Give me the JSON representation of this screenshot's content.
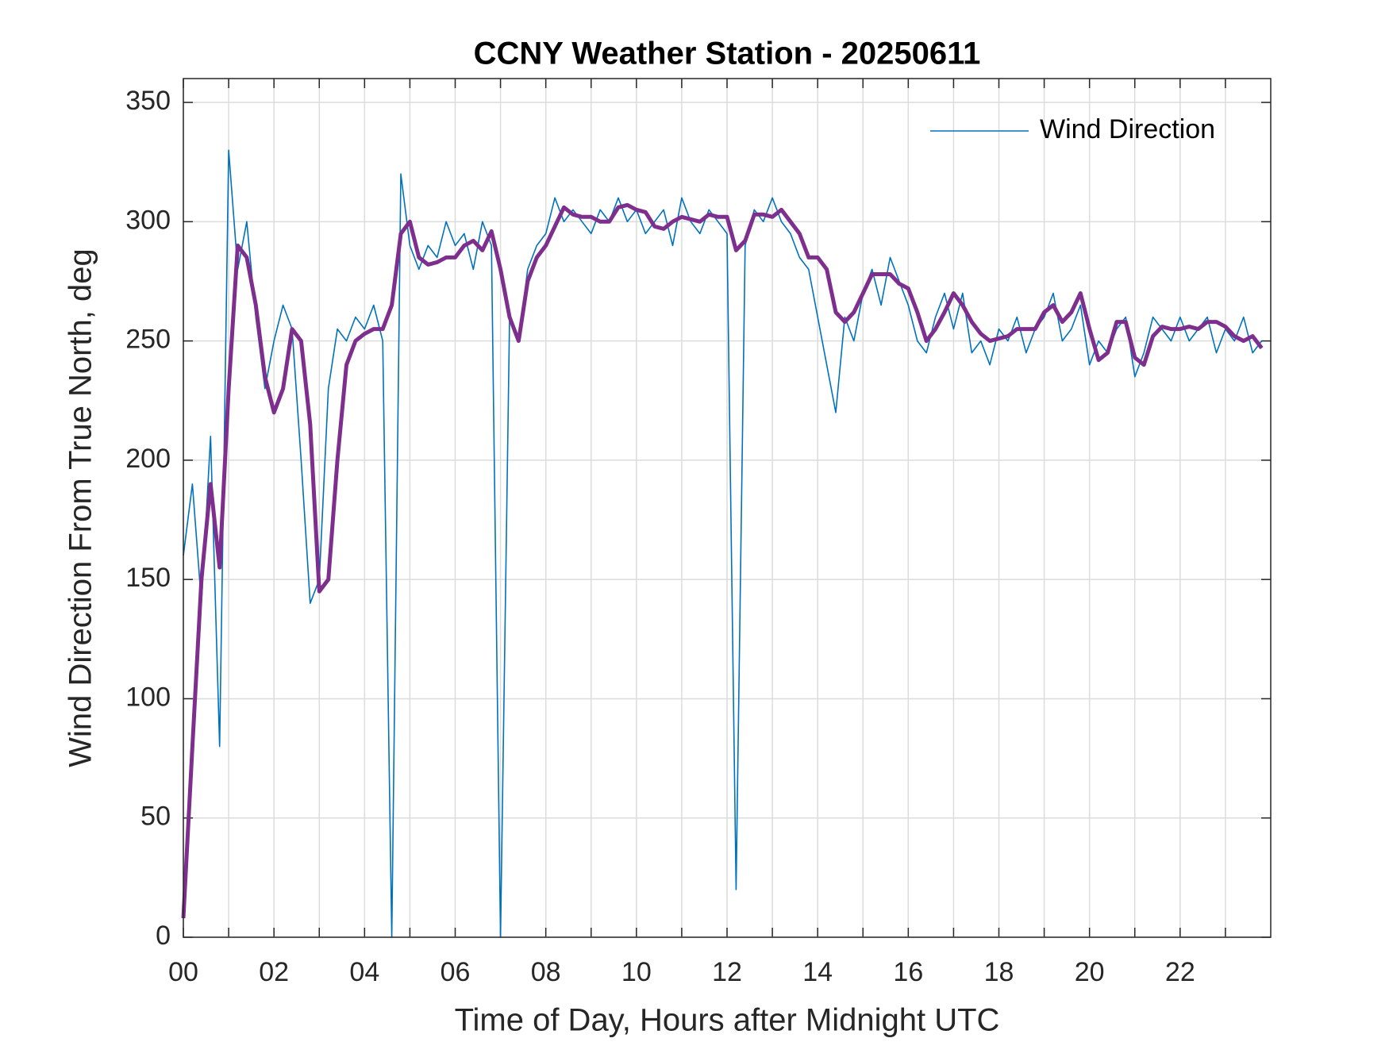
{
  "chart_data": {
    "type": "line",
    "title": "CCNY Weather Station - 20250611",
    "xlabel": "Time of Day, Hours after Midnight UTC",
    "ylabel": "Wind Direction From True North, deg",
    "x": [
      0,
      0.2,
      0.4,
      0.6,
      0.8,
      1,
      1.2,
      1.4,
      1.6,
      1.8,
      2,
      2.2,
      2.4,
      2.6,
      2.8,
      3,
      3.2,
      3.4,
      3.6,
      3.8,
      4,
      4.2,
      4.4,
      4.6,
      4.8,
      5,
      5.2,
      5.4,
      5.6,
      5.8,
      6,
      6.2,
      6.4,
      6.6,
      6.8,
      7,
      7.2,
      7.4,
      7.6,
      7.8,
      8,
      8.2,
      8.4,
      8.6,
      8.8,
      9,
      9.2,
      9.4,
      9.6,
      9.8,
      10,
      10.2,
      10.4,
      10.6,
      10.8,
      11,
      11.2,
      11.4,
      11.6,
      11.8,
      12,
      12.2,
      12.4,
      12.6,
      12.8,
      13,
      13.2,
      13.4,
      13.6,
      13.8,
      14,
      14.2,
      14.4,
      14.6,
      14.8,
      15,
      15.2,
      15.4,
      15.6,
      15.8,
      16,
      16.2,
      16.4,
      16.6,
      16.8,
      17,
      17.2,
      17.4,
      17.6,
      17.8,
      18,
      18.2,
      18.4,
      18.6,
      18.8,
      19,
      19.2,
      19.4,
      19.6,
      19.8,
      20,
      20.2,
      20.4,
      20.6,
      20.8,
      21,
      21.2,
      21.4,
      21.6,
      21.8,
      22,
      22.2,
      22.4,
      22.6,
      22.8,
      23,
      23.2,
      23.4,
      23.6,
      23.8
    ],
    "series": [
      {
        "name": "Wind Direction",
        "color": "#0072bd",
        "values": [
          160,
          190,
          140,
          210,
          80,
          330,
          280,
          300,
          260,
          230,
          250,
          265,
          255,
          200,
          140,
          150,
          230,
          255,
          250,
          260,
          255,
          265,
          250,
          0,
          320,
          290,
          280,
          290,
          285,
          300,
          290,
          295,
          280,
          300,
          290,
          0,
          260,
          250,
          280,
          290,
          295,
          310,
          300,
          305,
          300,
          295,
          305,
          300,
          310,
          300,
          305,
          295,
          300,
          305,
          290,
          310,
          300,
          295,
          305,
          300,
          295,
          20,
          290,
          305,
          300,
          310,
          300,
          295,
          285,
          280,
          260,
          240,
          220,
          260,
          250,
          270,
          280,
          265,
          285,
          275,
          265,
          250,
          245,
          260,
          270,
          255,
          270,
          245,
          250,
          240,
          255,
          250,
          260,
          245,
          255,
          260,
          270,
          250,
          255,
          265,
          240,
          250,
          245,
          255,
          260,
          235,
          245,
          260,
          255,
          250,
          260,
          250,
          255,
          260,
          245,
          255,
          250,
          260,
          245,
          250
        ]
      },
      {
        "color": "#7e2f8e",
        "values": [
          8,
          80,
          150,
          190,
          155,
          230,
          290,
          285,
          265,
          235,
          220,
          230,
          255,
          250,
          215,
          145,
          150,
          200,
          240,
          250,
          253,
          255,
          255,
          265,
          295,
          300,
          285,
          282,
          283,
          285,
          285,
          290,
          292,
          288,
          296,
          280,
          260,
          250,
          275,
          285,
          290,
          298,
          306,
          303,
          302,
          302,
          300,
          300,
          306,
          307,
          305,
          304,
          298,
          297,
          300,
          302,
          301,
          300,
          303,
          302,
          302,
          288,
          292,
          303,
          303,
          302,
          305,
          300,
          295,
          285,
          285,
          280,
          262,
          258,
          262,
          270,
          278,
          278,
          278,
          274,
          272,
          262,
          250,
          255,
          262,
          270,
          265,
          258,
          253,
          250,
          251,
          252,
          255,
          255,
          255,
          262,
          265,
          258,
          262,
          270,
          255,
          242,
          245,
          258,
          258,
          243,
          240,
          252,
          256,
          255,
          255,
          256,
          255,
          258,
          258,
          256,
          252,
          250,
          252,
          247
        ]
      }
    ],
    "xlim": [
      0,
      24
    ],
    "xticks": [
      {
        "value": 0,
        "label": "00"
      },
      {
        "value": 2,
        "label": "02"
      },
      {
        "value": 4,
        "label": "04"
      },
      {
        "value": 6,
        "label": "06"
      },
      {
        "value": 8,
        "label": "08"
      },
      {
        "value": 10,
        "label": "10"
      },
      {
        "value": 12,
        "label": "12"
      },
      {
        "value": 14,
        "label": "14"
      },
      {
        "value": 16,
        "label": "16"
      },
      {
        "value": 18,
        "label": "18"
      },
      {
        "value": 20,
        "label": "20"
      },
      {
        "value": 22,
        "label": "22"
      }
    ],
    "xminorticks": [
      1,
      3,
      5,
      7,
      9,
      11,
      13,
      15,
      17,
      19,
      21,
      23
    ],
    "ylim": [
      0,
      360
    ],
    "yticks": [
      0,
      50,
      100,
      150,
      200,
      250,
      300,
      350
    ],
    "grid": true,
    "legend": "northeast"
  }
}
